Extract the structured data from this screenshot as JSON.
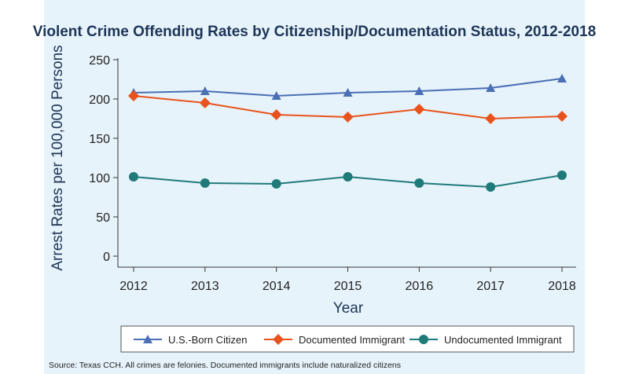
{
  "chart_data": {
    "type": "line",
    "title": "Violent Crime Offending Rates by Citizenship/Documentation Status, 2012-2018",
    "xlabel": "Year",
    "ylabel": "Arrest Rates per 100,000 Persons",
    "categories": [
      "2012",
      "2013",
      "2014",
      "2015",
      "2016",
      "2017",
      "2018"
    ],
    "yticks": [
      "0",
      "50",
      "100",
      "150",
      "200",
      "250"
    ],
    "ylim": [
      0,
      250
    ],
    "grid": false,
    "legend_position": "bottom",
    "series": [
      {
        "name": "U.S.-Born Citizen",
        "values": [
          208,
          210,
          204,
          208,
          210,
          214,
          226
        ],
        "color": "#4a6fb5",
        "marker": "triangle"
      },
      {
        "name": "Documented Immigrant",
        "values": [
          204,
          195,
          180,
          177,
          187,
          175,
          178
        ],
        "color": "#e8531d",
        "marker": "diamond"
      },
      {
        "name": "Undocumented Immigrant",
        "values": [
          101,
          93,
          92,
          101,
          93,
          88,
          103
        ],
        "color": "#1f7a7a",
        "marker": "circle"
      }
    ]
  },
  "source_note": "Source: Texas CCH. All crimes are felonies. Documented immigrants include naturalized citizens"
}
